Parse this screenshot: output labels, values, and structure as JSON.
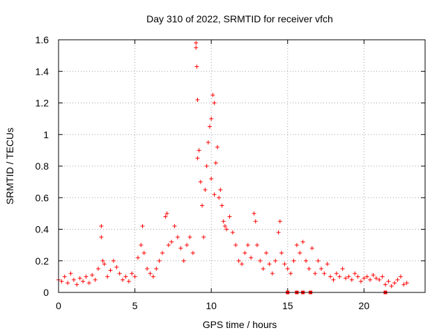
{
  "chart_data": {
    "type": "scatter",
    "title": "Day 310 of 2022, SRMTID for receiver vfch",
    "xlabel": "GPS time / hours",
    "ylabel": "SRMTID / TECUs",
    "xlim": [
      0,
      24
    ],
    "ylim": [
      0,
      1.6
    ],
    "xticks": [
      0,
      5,
      10,
      15,
      20
    ],
    "yticks": [
      0,
      0.2,
      0.4,
      0.6,
      0.8,
      1,
      1.2,
      1.4,
      1.6
    ],
    "grid": true,
    "series_color": "#ff0000",
    "series": [
      {
        "name": "SRMTID",
        "x": [
          0.0,
          0.2,
          0.4,
          0.6,
          0.8,
          1.0,
          1.2,
          1.4,
          1.6,
          1.8,
          2.0,
          2.2,
          2.4,
          2.6,
          2.8,
          2.8,
          2.9,
          3.0,
          3.2,
          3.4,
          3.6,
          3.8,
          4.0,
          4.2,
          4.4,
          4.6,
          4.8,
          5.0,
          5.2,
          5.4,
          5.5,
          5.6,
          5.8,
          6.0,
          6.2,
          6.4,
          6.6,
          6.8,
          7.0,
          7.1,
          7.2,
          7.4,
          7.6,
          7.8,
          8.0,
          8.2,
          8.4,
          8.6,
          8.8,
          9.0,
          9.0,
          9.05,
          9.1,
          9.1,
          9.2,
          9.3,
          9.4,
          9.5,
          9.6,
          9.7,
          9.8,
          9.9,
          10.0,
          10.0,
          10.1,
          10.2,
          10.2,
          10.3,
          10.4,
          10.5,
          10.6,
          10.7,
          10.8,
          10.9,
          11.0,
          11.2,
          11.4,
          11.6,
          11.8,
          12.0,
          12.2,
          12.4,
          12.6,
          12.8,
          12.9,
          13.0,
          13.2,
          13.4,
          13.6,
          13.8,
          14.0,
          14.2,
          14.4,
          14.5,
          14.6,
          14.8,
          15.0,
          15.2,
          15.4,
          15.6,
          15.8,
          16.0,
          16.2,
          16.4,
          16.6,
          16.8,
          17.0,
          17.2,
          17.4,
          17.6,
          17.8,
          18.0,
          18.2,
          18.4,
          18.6,
          18.8,
          19.0,
          19.2,
          19.4,
          19.6,
          19.8,
          20.0,
          20.2,
          20.4,
          20.6,
          20.8,
          21.0,
          21.2,
          21.4,
          21.6,
          21.8,
          22.0,
          22.2,
          22.4,
          22.6,
          22.8
        ],
        "y": [
          0.08,
          0.07,
          0.1,
          0.06,
          0.12,
          0.08,
          0.05,
          0.09,
          0.07,
          0.1,
          0.06,
          0.11,
          0.08,
          0.15,
          0.42,
          0.35,
          0.2,
          0.18,
          0.1,
          0.14,
          0.2,
          0.16,
          0.12,
          0.08,
          0.1,
          0.07,
          0.12,
          0.1,
          0.22,
          0.3,
          0.42,
          0.25,
          0.15,
          0.12,
          0.1,
          0.15,
          0.2,
          0.25,
          0.48,
          0.5,
          0.3,
          0.32,
          0.42,
          0.35,
          0.28,
          0.2,
          0.3,
          0.35,
          0.25,
          1.58,
          1.55,
          1.43,
          1.22,
          0.85,
          0.9,
          0.7,
          0.55,
          0.35,
          0.65,
          0.8,
          0.95,
          1.05,
          1.1,
          0.72,
          1.25,
          1.2,
          0.62,
          0.82,
          0.92,
          0.6,
          0.65,
          0.55,
          0.45,
          0.42,
          0.4,
          0.48,
          0.38,
          0.3,
          0.2,
          0.18,
          0.25,
          0.3,
          0.22,
          0.5,
          0.45,
          0.3,
          0.2,
          0.15,
          0.25,
          0.18,
          0.12,
          0.2,
          0.38,
          0.45,
          0.25,
          0.18,
          0.15,
          0.12,
          0.2,
          0.3,
          0.25,
          0.32,
          0.2,
          0.15,
          0.28,
          0.12,
          0.2,
          0.15,
          0.12,
          0.18,
          0.1,
          0.08,
          0.12,
          0.1,
          0.15,
          0.09,
          0.1,
          0.08,
          0.12,
          0.1,
          0.07,
          0.09,
          0.1,
          0.08,
          0.11,
          0.09,
          0.08,
          0.1,
          0.05,
          0.07,
          0.04,
          0.06,
          0.08,
          0.1,
          0.05,
          0.06
        ],
        "zero_markers_x": [
          15.0,
          15.6,
          16.0,
          16.5,
          21.4
        ]
      }
    ]
  }
}
